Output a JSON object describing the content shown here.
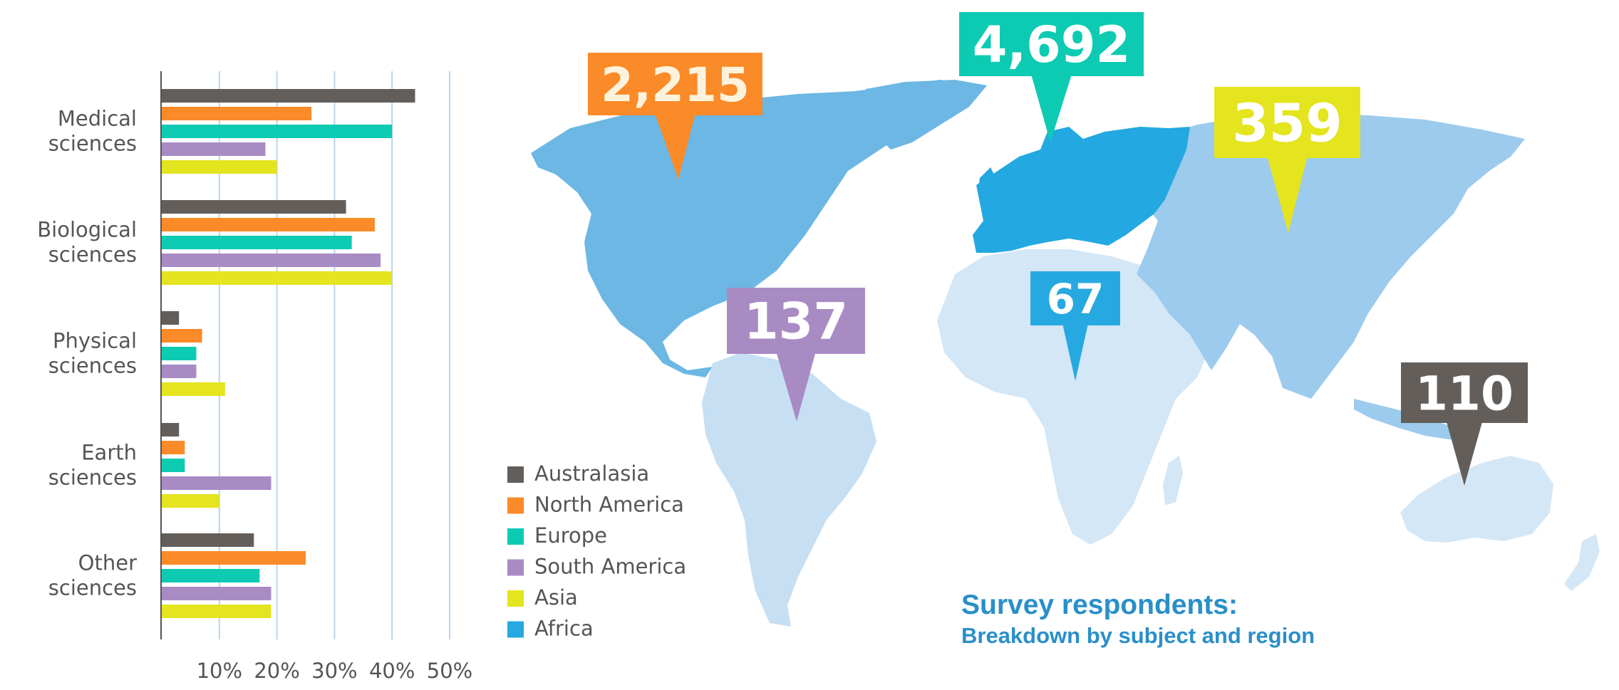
{
  "colors": {
    "Australasia": "#635e5a",
    "North America": "#fb8a28",
    "Europe": "#0dcbb2",
    "South America": "#a98bc4",
    "Asia": "#e4e41f",
    "Africa": "#26a9e0",
    "axis": "#555555",
    "grid": "#b9d4ea",
    "text": "#555555",
    "title": "#2a8fc9"
  },
  "chart_data": {
    "type": "bar",
    "orientation": "horizontal",
    "categories": [
      "Medical sciences",
      "Biological sciences",
      "Physical sciences",
      "Earth sciences",
      "Other sciences"
    ],
    "category_lines": [
      [
        "Medical",
        "sciences"
      ],
      [
        "Biological",
        "sciences"
      ],
      [
        "Physical",
        "sciences"
      ],
      [
        "Earth",
        "sciences"
      ],
      [
        "Other",
        "sciences"
      ]
    ],
    "series": [
      {
        "name": "Australasia",
        "values": [
          44,
          32,
          3,
          3,
          16
        ]
      },
      {
        "name": "North America",
        "values": [
          26,
          37,
          7,
          4,
          25
        ]
      },
      {
        "name": "Europe",
        "values": [
          40,
          33,
          6,
          4,
          17
        ]
      },
      {
        "name": "South America",
        "values": [
          18,
          38,
          6,
          19,
          19
        ]
      },
      {
        "name": "Asia",
        "values": [
          20,
          40,
          11,
          10,
          19
        ]
      }
    ],
    "xlim": [
      0,
      50
    ],
    "xticks": [
      10,
      20,
      30,
      40,
      50
    ],
    "xtick_labels": [
      "10%",
      "20%",
      "30%",
      "40%",
      "50%"
    ],
    "grid": "vertical",
    "legend": [
      "Australasia",
      "North America",
      "Europe",
      "South America",
      "Asia",
      "Africa"
    ]
  },
  "map": {
    "callouts": [
      {
        "region": "North America",
        "label": "2,215"
      },
      {
        "region": "Europe",
        "label": "4,692"
      },
      {
        "region": "Asia",
        "label": "359"
      },
      {
        "region": "South America",
        "label": "137"
      },
      {
        "region": "Africa",
        "label": "67"
      },
      {
        "region": "Australasia",
        "label": "110"
      }
    ]
  },
  "title": "Survey respondents:",
  "subtitle": "Breakdown by subject and region"
}
